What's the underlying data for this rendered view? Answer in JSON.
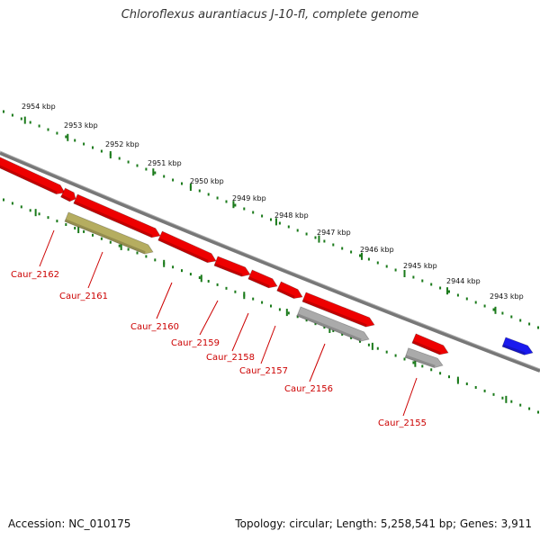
{
  "title": "Chloroflexus aurantiacus J-10-fl, complete genome",
  "footer": {
    "accession": "Accession: NC_010175",
    "summary": "Topology: circular; Length: 5,258,541 bp; Genes: 3,911"
  },
  "colors": {
    "genome_line": "#777777",
    "ticks": "#1a7a1a",
    "gene_red": "#ee0000",
    "gene_gray": "#aaaaaa",
    "gene_olive": "#b5ad60",
    "gene_blue": "#1a1aee",
    "label_red": "#cc0000"
  },
  "scale_labels": [
    "2954 kbp",
    "2953 kbp",
    "2952 kbp",
    "2951 kbp",
    "2950 kbp",
    "2949 kbp",
    "2948 kbp",
    "2947 kbp",
    "2946 kbp",
    "2945 kbp",
    "2944 kbp",
    "2943 kbp"
  ],
  "genes": [
    {
      "id": "g1",
      "color": "red",
      "labeled": false
    },
    {
      "id": "g2",
      "color": "red",
      "labeled": false
    },
    {
      "id": "g3",
      "color": "red",
      "labeled": false
    },
    {
      "id": "g4",
      "color": "olive",
      "labeled": false
    },
    {
      "id": "g5",
      "color": "red",
      "labeled": false
    },
    {
      "id": "g6",
      "color": "red",
      "labeled": false
    },
    {
      "id": "g7",
      "color": "red",
      "labeled": false
    },
    {
      "id": "g8",
      "color": "red",
      "labeled": false
    },
    {
      "id": "g9",
      "color": "red",
      "labeled": false
    },
    {
      "id": "g10",
      "color": "gray",
      "labeled": false
    },
    {
      "id": "g11",
      "color": "red",
      "labeled": false
    },
    {
      "id": "g12",
      "color": "gray",
      "labeled": false
    },
    {
      "id": "g13",
      "color": "blue",
      "labeled": false
    }
  ],
  "gene_labels": [
    "Caur_2162",
    "Caur_2161",
    "Caur_2160",
    "Caur_2159",
    "Caur_2158",
    "Caur_2157",
    "Caur_2156",
    "Caur_2155"
  ]
}
